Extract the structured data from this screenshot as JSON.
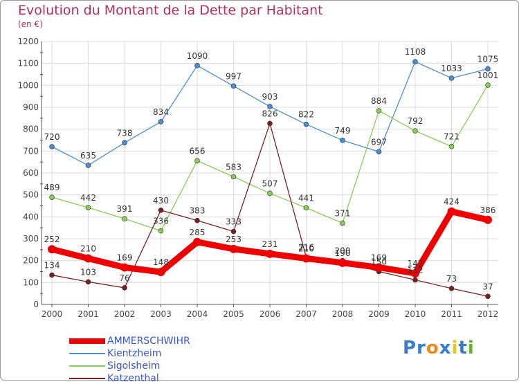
{
  "title": "Evolution du Montant de la Dette par Habitant",
  "unit": "(en €)",
  "brand": {
    "parts": [
      "Pr",
      "o",
      "x",
      "i",
      "t",
      "i"
    ],
    "colors": [
      "#3a7cc9",
      "#e88a1c",
      "#3a7cc9",
      "#e8c51c",
      "#3a7cc9",
      "#6ab030"
    ]
  },
  "chart_data": {
    "type": "line",
    "x": [
      "2000",
      "2001",
      "2002",
      "2003",
      "2004",
      "2005",
      "2006",
      "2007",
      "2008",
      "2009",
      "2010",
      "2011",
      "2012"
    ],
    "ylim": [
      0,
      1200
    ],
    "yticks": [
      "0",
      "100",
      "200",
      "300",
      "400",
      "500",
      "600",
      "700",
      "800",
      "900",
      "1000",
      "1100",
      "1200"
    ],
    "grid": true,
    "legend_placement": "bottom-left",
    "series": [
      {
        "name": "AMMERSCHWIHR",
        "color": "#ee0000",
        "values": [
          252,
          210,
          169,
          148,
          285,
          253,
          231,
          210,
          190,
          169,
          142,
          424,
          386
        ]
      },
      {
        "name": "Kientzheim",
        "color": "#4a8ed0",
        "values": [
          720,
          635,
          738,
          834,
          1090,
          997,
          903,
          822,
          749,
          697,
          1108,
          1033,
          1075
        ]
      },
      {
        "name": "Sigolsheim",
        "color": "#88cc55",
        "values": [
          489,
          442,
          391,
          336,
          656,
          583,
          507,
          441,
          371,
          884,
          792,
          721,
          1001
        ]
      },
      {
        "name": "Katzenthal",
        "color": "#7a2020",
        "values": [
          134,
          103,
          76,
          430,
          383,
          333,
          826,
          216,
          200,
          150,
          112,
          73,
          37
        ]
      }
    ]
  }
}
